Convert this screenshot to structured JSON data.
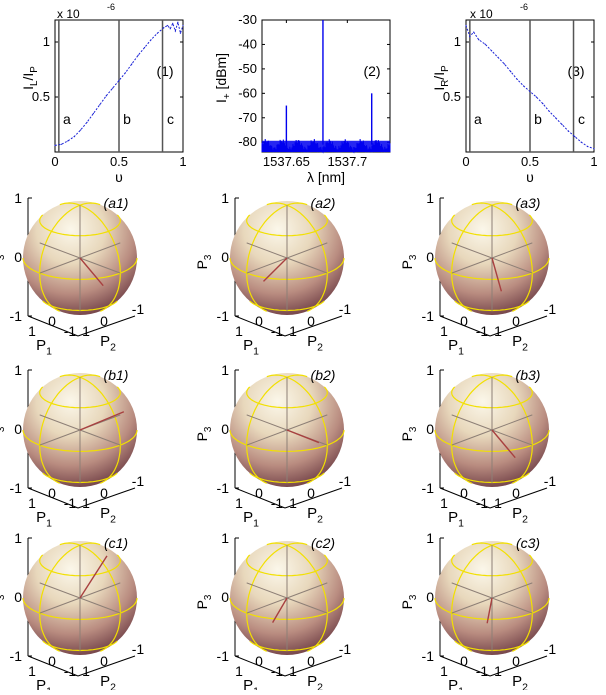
{
  "chart_data": [
    {
      "id": "plot-1",
      "type": "line",
      "panel_label": "(1)",
      "ylabel_main": "I",
      "ylabel_sub1": "L",
      "ylabel_mid": "/I",
      "ylabel_sub2": "P",
      "xlabel": "υ",
      "exponent_base": "x 10",
      "exponent_power": "-6",
      "xlim": [
        0,
        1
      ],
      "ylim": [
        0,
        1.2
      ],
      "xticks": [
        "0",
        "0.5",
        "1"
      ],
      "xtick_values": [
        0,
        0.5,
        1
      ],
      "yticks": [
        "0.5",
        "1"
      ],
      "ytick_values": [
        0.5,
        1
      ],
      "markers": [
        {
          "label": "a",
          "x": 0.03
        },
        {
          "label": "b",
          "x": 0.5
        },
        {
          "label": "c",
          "x": 0.84
        }
      ],
      "x": [
        0,
        0.05,
        0.1,
        0.15,
        0.2,
        0.25,
        0.3,
        0.35,
        0.4,
        0.45,
        0.5,
        0.55,
        0.6,
        0.65,
        0.7,
        0.75,
        0.8,
        0.85,
        0.88,
        0.9,
        0.92,
        0.94,
        0.96,
        0.98,
        1.0
      ],
      "values": [
        0.06,
        0.07,
        0.1,
        0.14,
        0.2,
        0.27,
        0.35,
        0.43,
        0.51,
        0.58,
        0.65,
        0.72,
        0.8,
        0.88,
        0.95,
        1.02,
        1.08,
        1.13,
        1.15,
        1.12,
        1.17,
        1.1,
        1.18,
        1.08,
        1.15
      ]
    },
    {
      "id": "plot-2",
      "type": "line",
      "panel_label": "(2)",
      "ylabel_main": "I",
      "ylabel_sub1": "+",
      "ylabel_mid": " [dBm]",
      "xlabel": "λ [nm]",
      "xlim": [
        1537.63,
        1537.735
      ],
      "ylim": [
        -84,
        -30
      ],
      "xticks": [
        "1537.65",
        "1537.7"
      ],
      "xtick_values": [
        1537.65,
        1537.7
      ],
      "yticks": [
        "-80",
        "-70",
        "-60",
        "-50",
        "-40",
        "-30"
      ],
      "ytick_values": [
        -80,
        -70,
        -60,
        -50,
        -40,
        -30
      ],
      "noise_floor": -81,
      "peaks": [
        {
          "x": 1537.65,
          "value": -65
        },
        {
          "x": 1537.68,
          "value": -30
        },
        {
          "x": 1537.72,
          "value": -60
        }
      ]
    },
    {
      "id": "plot-3",
      "type": "line",
      "panel_label": "(3)",
      "ylabel_main": "I",
      "ylabel_sub1": "R",
      "ylabel_mid": "/I",
      "ylabel_sub2": "P",
      "xlabel": "υ",
      "exponent_base": "x 10",
      "exponent_power": "-6",
      "xlim": [
        0,
        1
      ],
      "ylim": [
        0,
        1.2
      ],
      "xticks": [
        "0",
        "0.5",
        "1"
      ],
      "xtick_values": [
        0,
        0.5,
        1
      ],
      "yticks": [
        "0.5",
        "1"
      ],
      "ytick_values": [
        0.5,
        1
      ],
      "markers": [
        {
          "label": "a",
          "x": 0.03
        },
        {
          "label": "b",
          "x": 0.5
        },
        {
          "label": "c",
          "x": 0.84
        }
      ],
      "x": [
        0,
        0.03,
        0.06,
        0.1,
        0.15,
        0.2,
        0.25,
        0.3,
        0.35,
        0.4,
        0.45,
        0.5,
        0.55,
        0.6,
        0.65,
        0.7,
        0.75,
        0.8,
        0.85,
        0.9,
        0.95,
        1.0
      ],
      "values": [
        1.15,
        1.05,
        1.09,
        1.02,
        0.98,
        0.92,
        0.86,
        0.8,
        0.73,
        0.66,
        0.6,
        0.55,
        0.5,
        0.44,
        0.37,
        0.31,
        0.25,
        0.19,
        0.14,
        0.09,
        0.05,
        0.03
      ]
    }
  ],
  "sphere_axes": {
    "p3_main": "P",
    "p3_sub": "3",
    "p1_main": "P",
    "p1_sub": "1",
    "p2_main": "P",
    "p2_sub": "2",
    "z_ticks": [
      "1",
      "0",
      "-1"
    ],
    "p1_ticks": [
      "1",
      "0",
      "-1"
    ],
    "p2_ticks": [
      "1",
      "0",
      "-1"
    ]
  },
  "spheres": [
    {
      "label": "(a1)",
      "vector_azimuth": 200,
      "vector_elev": -10
    },
    {
      "label": "(a2)",
      "vector_azimuth": 250,
      "vector_elev": -5
    },
    {
      "label": "(a3)",
      "vector_azimuth": 215,
      "vector_elev": -15
    },
    {
      "label": "(b1)",
      "vector_azimuth": 160,
      "vector_elev": 30
    },
    {
      "label": "(b2)",
      "vector_azimuth": 190,
      "vector_elev": 5
    },
    {
      "label": "(b3)",
      "vector_azimuth": 200,
      "vector_elev": -10
    },
    {
      "label": "(c1)",
      "vector_azimuth": 150,
      "vector_elev": 60
    },
    {
      "label": "(c2)",
      "vector_azimuth": 240,
      "vector_elev": -5
    },
    {
      "label": "(c3)",
      "vector_azimuth": 230,
      "vector_elev": -5
    }
  ],
  "colors": {
    "curve": "#1a22d6",
    "spectrum": "#0000ee",
    "grid_yellow": "#f2e000",
    "sphere_light": "#f7f1de",
    "sphere_mid": "#c9a88c",
    "sphere_dark": "#8a5a58",
    "vector": "#a84040",
    "marker_line": "#555555"
  }
}
